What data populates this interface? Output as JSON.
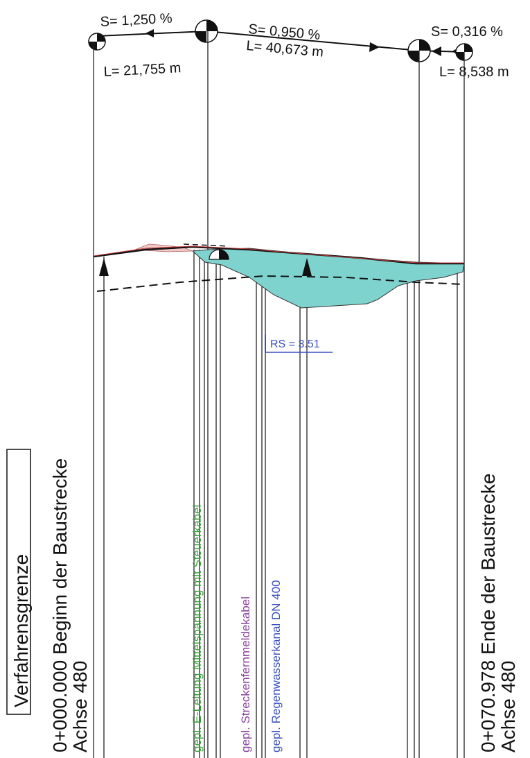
{
  "gradient": {
    "segments": [
      {
        "slope": "S= 1,250 %",
        "length": "L= 21,755 m"
      },
      {
        "slope": "S= 0,950 %",
        "length": "L= 40,673 m"
      },
      {
        "slope": "S= 0,316 %",
        "length": "L= 8,538 m"
      }
    ]
  },
  "annotations": {
    "rs_label": "RS = 3.51"
  },
  "vertical_labels": {
    "verfahrensgrenze": "Verfahrensgrenze",
    "start_station": "0+000.000 Beginn der Baustrecke",
    "start_axis": "Achse 480",
    "e_leitung": "gepl. E-Leitung Mittelspannung mit Steuerkabel",
    "fernmelde": "gepl. Streckenfernmeldekabel",
    "regenwasser": "gepl. Regenwasserkanal DN 400",
    "end_station": "0+070.978 Ende der Baustrecke",
    "end_axis": "Achse 480"
  },
  "colors": {
    "fill_cut": "#7fd3cf",
    "fill_fill": "#f0c8c8",
    "line": "#111111",
    "green_label": "#3aa23a",
    "purple_label": "#8a3f9e",
    "blue_label": "#3a4fc0",
    "red_line": "#c23a3a"
  }
}
